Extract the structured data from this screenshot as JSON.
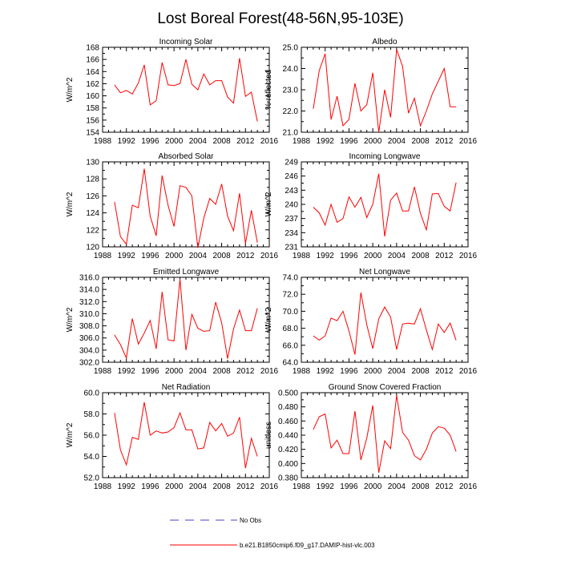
{
  "page_title": "Lost Boreal Forest(48-56N,95-103E)",
  "colors": {
    "series": "#ff0000",
    "obs": "#4b3cc8",
    "axis": "#000000"
  },
  "legend": {
    "obs_label": "No Obs",
    "model_label": "b.e21.B1850cmip6.f09_g17.DAMIP-hist-vlc.003"
  },
  "chart_data": [
    {
      "id": "incoming-solar",
      "type": "line",
      "title": "Incoming Solar",
      "ylabel": "W/m^2",
      "xlim": [
        1988,
        2016
      ],
      "xticks": [
        "1988",
        "1992",
        "1996",
        "2000",
        "2004",
        "2008",
        "2012",
        "2016"
      ],
      "ylim": [
        154,
        168
      ],
      "yticks": [
        "154",
        "156",
        "158",
        "160",
        "162",
        "164",
        "166",
        "168"
      ],
      "x": [
        1990,
        1991,
        1992,
        1993,
        1994,
        1995,
        1996,
        1997,
        1998,
        1999,
        2000,
        2001,
        2002,
        2003,
        2004,
        2005,
        2006,
        2007,
        2008,
        2009,
        2010,
        2011,
        2012,
        2013,
        2014
      ],
      "values": [
        161.8,
        160.5,
        160.9,
        160.3,
        162.1,
        165.1,
        158.5,
        159.2,
        165.5,
        161.8,
        161.7,
        162.0,
        166.0,
        161.9,
        161.0,
        163.6,
        161.8,
        162.5,
        162.5,
        159.8,
        158.8,
        166.2,
        159.9,
        160.6,
        155.8
      ]
    },
    {
      "id": "albedo",
      "type": "line",
      "title": "Albedo",
      "ylabel": "% reflected",
      "xlim": [
        1988,
        2016
      ],
      "xticks": [
        "1988",
        "1992",
        "1996",
        "2000",
        "2004",
        "2008",
        "2012",
        "2016"
      ],
      "ylim": [
        21.0,
        25.0
      ],
      "yticks": [
        "21.0",
        "22.0",
        "23.0",
        "24.0",
        "25.0"
      ],
      "x": [
        1990,
        1991,
        1992,
        1993,
        1994,
        1995,
        1996,
        1997,
        1998,
        1999,
        2000,
        2001,
        2002,
        2003,
        2004,
        2005,
        2006,
        2007,
        2008,
        2009,
        2010,
        2011,
        2012,
        2013,
        2014
      ],
      "values": [
        22.1,
        23.9,
        24.7,
        21.6,
        22.7,
        21.3,
        21.6,
        23.3,
        22.0,
        22.3,
        23.8,
        21.0,
        23.0,
        21.7,
        24.9,
        24.1,
        21.9,
        22.6,
        21.3,
        22.0,
        22.8,
        23.4,
        24.0,
        22.2,
        22.2
      ]
    },
    {
      "id": "absorbed-solar",
      "type": "line",
      "title": "Absorbed Solar",
      "ylabel": "W/m^2",
      "xlim": [
        1988,
        2016
      ],
      "xticks": [
        "1988",
        "1992",
        "1996",
        "2000",
        "2004",
        "2008",
        "2012",
        "2016"
      ],
      "ylim": [
        120,
        130
      ],
      "yticks": [
        "120",
        "122",
        "124",
        "126",
        "128",
        "130"
      ],
      "x": [
        1990,
        1991,
        1992,
        1993,
        1994,
        1995,
        1996,
        1997,
        1998,
        1999,
        2000,
        2001,
        2002,
        2003,
        2004,
        2005,
        2006,
        2007,
        2008,
        2009,
        2010,
        2011,
        2012,
        2013,
        2014
      ],
      "values": [
        125.3,
        121.2,
        120.3,
        124.9,
        124.6,
        129.2,
        123.6,
        121.3,
        128.4,
        124.9,
        122.4,
        127.2,
        127.0,
        126.0,
        119.9,
        123.4,
        125.7,
        125.0,
        127.4,
        123.6,
        121.9,
        126.3,
        120.4,
        124.3,
        120.5
      ]
    },
    {
      "id": "incoming-longwave",
      "type": "line",
      "title": "Incoming Longwave",
      "ylabel": "W/m^2",
      "xlim": [
        1988,
        2016
      ],
      "xticks": [
        "1988",
        "1992",
        "1996",
        "2000",
        "2004",
        "2008",
        "2012",
        "2016"
      ],
      "ylim": [
        231,
        249
      ],
      "yticks": [
        "231",
        "234",
        "237",
        "240",
        "243",
        "246",
        "249"
      ],
      "x": [
        1990,
        1991,
        1992,
        1993,
        1994,
        1995,
        1996,
        1997,
        1998,
        1999,
        2000,
        2001,
        2002,
        2003,
        2004,
        2005,
        2006,
        2007,
        2008,
        2009,
        2010,
        2011,
        2012,
        2013,
        2014
      ],
      "values": [
        239.4,
        238.2,
        235.6,
        240.0,
        236.2,
        237.0,
        241.6,
        239.4,
        241.5,
        237.2,
        240.0,
        246.5,
        233.2,
        240.9,
        242.4,
        238.6,
        238.6,
        243.7,
        238.1,
        234.6,
        242.2,
        242.3,
        239.6,
        238.6,
        244.6
      ]
    },
    {
      "id": "emitted-longwave",
      "type": "line",
      "title": "Emitted Longwave",
      "ylabel": "W/m^2",
      "xlim": [
        1988,
        2016
      ],
      "xticks": [
        "1988",
        "1992",
        "1996",
        "2000",
        "2004",
        "2008",
        "2012",
        "2016"
      ],
      "ylim": [
        302.0,
        316.0
      ],
      "yticks": [
        "302.0",
        "304.0",
        "306.0",
        "308.0",
        "310.0",
        "312.0",
        "314.0",
        "316.0"
      ],
      "x": [
        1990,
        1991,
        1992,
        1993,
        1994,
        1995,
        1996,
        1997,
        1998,
        1999,
        2000,
        2001,
        2002,
        2003,
        2004,
        2005,
        2006,
        2007,
        2008,
        2009,
        2010,
        2011,
        2012,
        2013,
        2014
      ],
      "values": [
        306.5,
        304.9,
        302.7,
        309.2,
        305.0,
        306.8,
        308.9,
        304.2,
        313.6,
        305.7,
        305.5,
        315.7,
        304.0,
        309.9,
        307.6,
        307.1,
        307.2,
        311.9,
        308.5,
        302.6,
        307.5,
        310.6,
        307.2,
        307.2,
        310.9
      ]
    },
    {
      "id": "net-longwave",
      "type": "line",
      "title": "Net Longwave",
      "ylabel": "W/m^2",
      "xlim": [
        1988,
        2016
      ],
      "xticks": [
        "1988",
        "1992",
        "1996",
        "2000",
        "2004",
        "2008",
        "2012",
        "2016"
      ],
      "ylim": [
        64.0,
        74.0
      ],
      "yticks": [
        "64.0",
        "66.0",
        "68.0",
        "70.0",
        "72.0",
        "74.0"
      ],
      "x": [
        1990,
        1991,
        1992,
        1993,
        1994,
        1995,
        1996,
        1997,
        1998,
        1999,
        2000,
        2001,
        2002,
        2003,
        2004,
        2005,
        2006,
        2007,
        2008,
        2009,
        2010,
        2011,
        2012,
        2013,
        2014
      ],
      "values": [
        67.1,
        66.6,
        67.1,
        69.2,
        68.9,
        70.0,
        67.7,
        64.9,
        72.2,
        68.4,
        65.6,
        69.1,
        70.5,
        69.3,
        65.5,
        68.5,
        68.6,
        68.5,
        70.3,
        67.8,
        65.5,
        68.5,
        67.5,
        68.6,
        66.6
      ]
    },
    {
      "id": "net-radiation",
      "type": "line",
      "title": "Net Radiation",
      "ylabel": "W/m^2",
      "xlim": [
        1988,
        2016
      ],
      "xticks": [
        "1988",
        "1992",
        "1996",
        "2000",
        "2004",
        "2008",
        "2012",
        "2016"
      ],
      "ylim": [
        52.0,
        60.0
      ],
      "yticks": [
        "52.0",
        "54.0",
        "56.0",
        "58.0",
        "60.0"
      ],
      "x": [
        1990,
        1991,
        1992,
        1993,
        1994,
        1995,
        1996,
        1997,
        1998,
        1999,
        2000,
        2001,
        2002,
        2003,
        2004,
        2005,
        2006,
        2007,
        2008,
        2009,
        2010,
        2011,
        2012,
        2013,
        2014
      ],
      "values": [
        58.1,
        54.6,
        53.2,
        55.8,
        55.6,
        59.1,
        56.0,
        56.4,
        56.2,
        56.3,
        56.7,
        58.1,
        56.5,
        56.5,
        54.7,
        54.8,
        57.2,
        56.4,
        57.1,
        55.9,
        56.2,
        57.7,
        52.9,
        55.7,
        54.0
      ]
    },
    {
      "id": "ground-snow",
      "type": "line",
      "title": "Ground Snow Covered Fraction",
      "ylabel": "unitless",
      "xlim": [
        1988,
        2016
      ],
      "xticks": [
        "1988",
        "1992",
        "1996",
        "2000",
        "2004",
        "2008",
        "2012",
        "2016"
      ],
      "ylim": [
        0.38,
        0.5
      ],
      "yticks": [
        "0.380",
        "0.400",
        "0.420",
        "0.440",
        "0.460",
        "0.480",
        "0.500"
      ],
      "x": [
        1990,
        1991,
        1992,
        1993,
        1994,
        1995,
        1996,
        1997,
        1998,
        1999,
        2000,
        2001,
        2002,
        2003,
        2004,
        2005,
        2006,
        2007,
        2008,
        2009,
        2010,
        2011,
        2012,
        2013,
        2014
      ],
      "values": [
        0.448,
        0.466,
        0.47,
        0.422,
        0.433,
        0.414,
        0.414,
        0.474,
        0.405,
        0.436,
        0.482,
        0.387,
        0.432,
        0.421,
        0.496,
        0.444,
        0.433,
        0.411,
        0.405,
        0.42,
        0.443,
        0.452,
        0.45,
        0.44,
        0.417
      ]
    }
  ]
}
